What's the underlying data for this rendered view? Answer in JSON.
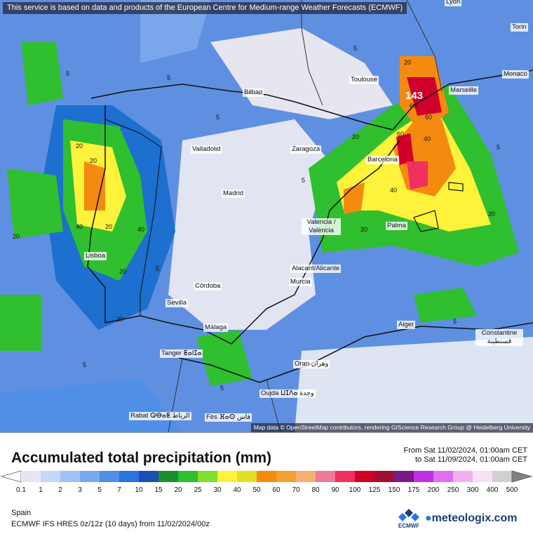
{
  "notice": "This service is based on data and products of the European Centre for Medium-range Weather Forecasts (ECMWF)",
  "attribution": "Map data © OpenStreetMap contributors, rendering GIScience Research Group @ Heidelberg University",
  "cities": {
    "lyon": "Lyon",
    "torino": "Torin",
    "monaco": "Monaco",
    "marseille": "Marseille",
    "toulouse": "Toulouse",
    "bilbao": "Bilbao",
    "valladolid": "Valladolid",
    "zaragoza": "Zaragoza",
    "barcelona": "Barcelona",
    "madrid": "Madrid",
    "valencia": "Valencia / València",
    "palma": "Palma",
    "lisboa": "Lisboa",
    "alicante": "Alacant/Alicante",
    "murcia": "Murcia",
    "cordoba": "Córdoba",
    "sevilla": "Sevilla",
    "malaga": "Málaga",
    "alger": "Alger",
    "constantine": "Constantine قسنطينة",
    "tanger": "Tanger ⵟⴰⵏⵊⴰ",
    "oran": "Oran وهران",
    "oujda": "Oujda ⵡⵊⴷⴰ وجدة",
    "rabat": "Rabat ⵕⴱⴰⵟ الرباط",
    "fes": "Fès ⴼⴰⵙ فاس"
  },
  "values": {
    "max": "143",
    "v60a": "60",
    "v60b": "60",
    "v60c": "60",
    "v40a": "40",
    "v40b": "40",
    "v40c": "40",
    "v40d": "40",
    "v20a": "20",
    "v20b": "20",
    "v20c": "20",
    "v20d": "20",
    "v20e": "20",
    "v20f": "20",
    "v20g": "20",
    "v20h": "20",
    "v20i": "20",
    "v20j": "20",
    "v5a": "5",
    "v5b": "5",
    "v5c": "5",
    "v5d": "5",
    "v5e": "5",
    "v5f": "5",
    "v5g": "5",
    "v5h": "5",
    "v5i": "5",
    "v5j": "5"
  },
  "title": "Accumulated total precipitation (mm)",
  "date_from": "From Sat 11/02/2024, 01:00am CET",
  "date_to": "to Sat 11/09/2024, 01:00am CET",
  "legend": {
    "labels": [
      "0.1",
      "1",
      "2",
      "3",
      "5",
      "7",
      "10",
      "15",
      "20",
      "25",
      "30",
      "40",
      "50",
      "60",
      "70",
      "80",
      "90",
      "100",
      "125",
      "150",
      "175",
      "200",
      "250",
      "300",
      "400",
      "500"
    ],
    "colors": [
      "#e6e6f0",
      "#c4d7f7",
      "#9fc2f5",
      "#78a8ee",
      "#4f8fe8",
      "#2a74e0",
      "#1a4fb8",
      "#1b8f2e",
      "#2fbf2f",
      "#7fe030",
      "#fff23a",
      "#e0e020",
      "#f58a10",
      "#f5a030",
      "#f5b070",
      "#f07898",
      "#f03060",
      "#d00020",
      "#a01030",
      "#7a1a8a",
      "#c030e0",
      "#e070f0",
      "#f0b0f0",
      "#f8e0f8",
      "#d0d0d0"
    ]
  },
  "region": "Spain",
  "model": "ECMWF IFS HRES 0z/12z (10 days) from 11/02/2024/00z",
  "brand": "meteologix.com",
  "ecmwf_label": "ECMWF",
  "colors": {
    "sea_light": "#dde4f2",
    "land_light": "#e7e7ef",
    "heavy": "#d0002a",
    "rain_green": "#2fbf2f",
    "rain_yellow": "#fff23a"
  }
}
